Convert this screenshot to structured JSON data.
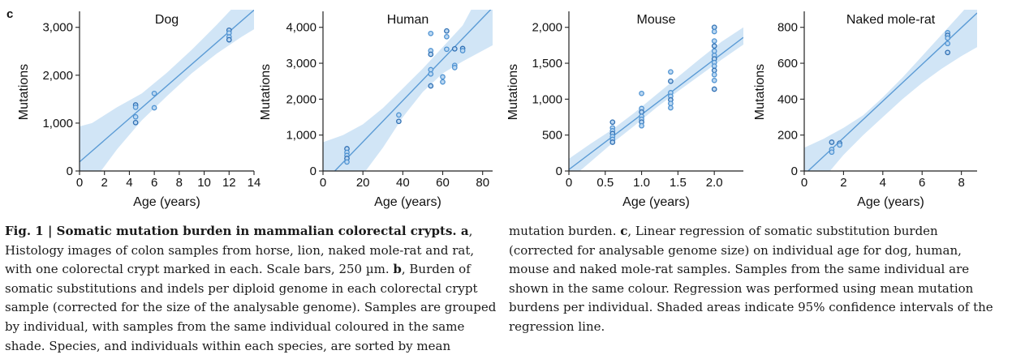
{
  "panel_label": "c",
  "chart_data": [
    {
      "type": "scatter",
      "title": "Dog",
      "xlabel": "Age (years)",
      "ylabel": "Mutations",
      "xlim": [
        0,
        14
      ],
      "ylim": [
        0,
        3300
      ],
      "xticks": [
        0,
        2,
        4,
        6,
        8,
        10,
        12,
        14
      ],
      "yticks": [
        0,
        1000,
        2000,
        3000
      ],
      "ytick_labels": [
        "0",
        "1,000",
        "2,000",
        "3,000"
      ],
      "points": [
        [
          4.5,
          1380
        ],
        [
          4.5,
          1330
        ],
        [
          4.5,
          1130
        ],
        [
          4.5,
          1010
        ],
        [
          6,
          1620
        ],
        [
          6,
          1320
        ],
        [
          12,
          2940
        ],
        [
          12,
          2880
        ],
        [
          12,
          2800
        ],
        [
          12,
          2740
        ]
      ],
      "fit": {
        "x": [
          0,
          14
        ],
        "y": [
          190,
          3360
        ]
      },
      "band": {
        "x": [
          0,
          1,
          3,
          5,
          7,
          9,
          11,
          13,
          14
        ],
        "lower": [
          -550,
          -250,
          450,
          1060,
          1560,
          2040,
          2450,
          2800,
          2960
        ],
        "upper": [
          930,
          1000,
          1330,
          1620,
          2050,
          2530,
          3050,
          3600,
          3850
        ]
      },
      "grid": false
    },
    {
      "type": "scatter",
      "title": "Human",
      "xlabel": "Age (years)",
      "ylabel": "Mutations",
      "xlim": [
        0,
        85
      ],
      "ylim": [
        0,
        4400
      ],
      "xticks": [
        0,
        20,
        40,
        60,
        80
      ],
      "yticks": [
        0,
        1000,
        2000,
        3000,
        4000
      ],
      "ytick_labels": [
        "0",
        "1,000",
        "2,000",
        "3,000",
        "4,000"
      ],
      "points": [
        [
          12,
          620
        ],
        [
          12,
          520
        ],
        [
          12,
          430
        ],
        [
          12,
          350
        ],
        [
          12,
          250
        ],
        [
          38,
          1560
        ],
        [
          38,
          1380
        ],
        [
          54,
          3830
        ],
        [
          54,
          3350
        ],
        [
          54,
          3250
        ],
        [
          54,
          2820
        ],
        [
          54,
          2700
        ],
        [
          54,
          2370
        ],
        [
          60,
          2620
        ],
        [
          60,
          2480
        ],
        [
          62,
          3900
        ],
        [
          62,
          3740
        ],
        [
          62,
          3390
        ],
        [
          66,
          3400
        ],
        [
          66,
          2940
        ],
        [
          66,
          2880
        ],
        [
          70,
          3410
        ],
        [
          70,
          3350
        ]
      ],
      "fit": {
        "x": [
          0,
          85
        ],
        "y": [
          -340,
          4550
        ]
      },
      "band": {
        "x": [
          0,
          10,
          20,
          30,
          40,
          50,
          60,
          70,
          85
        ],
        "lower": [
          -1500,
          -800,
          -100,
          650,
          1500,
          2200,
          2720,
          3050,
          3500
        ],
        "upper": [
          800,
          1000,
          1300,
          1750,
          2300,
          2850,
          3450,
          4050,
          5600
        ]
      },
      "grid": false
    },
    {
      "type": "scatter",
      "title": "Mouse",
      "xlabel": "Age (years)",
      "ylabel": "Mutations",
      "xlim": [
        0,
        2.4
      ],
      "ylim": [
        0,
        2200
      ],
      "xticks": [
        0,
        0.5,
        1.0,
        1.5,
        2.0
      ],
      "xtick_labels": [
        "0",
        "0.5",
        "1.0",
        "1.5",
        "2.0"
      ],
      "yticks": [
        0,
        500,
        1000,
        1500,
        2000
      ],
      "ytick_labels": [
        "0",
        "500",
        "1,000",
        "1,500",
        "2,000"
      ],
      "points": [
        [
          0.6,
          680
        ],
        [
          0.6,
          600
        ],
        [
          0.6,
          560
        ],
        [
          0.6,
          520
        ],
        [
          0.6,
          480
        ],
        [
          0.6,
          440
        ],
        [
          0.6,
          400
        ],
        [
          1.0,
          1080
        ],
        [
          1.0,
          870
        ],
        [
          1.0,
          820
        ],
        [
          1.0,
          760
        ],
        [
          1.0,
          720
        ],
        [
          1.0,
          680
        ],
        [
          1.0,
          630
        ],
        [
          1.4,
          1380
        ],
        [
          1.4,
          1250
        ],
        [
          1.4,
          1090
        ],
        [
          1.4,
          1040
        ],
        [
          1.4,
          990
        ],
        [
          1.4,
          940
        ],
        [
          1.4,
          880
        ],
        [
          2.0,
          2000
        ],
        [
          2.0,
          1940
        ],
        [
          2.0,
          1810
        ],
        [
          2.0,
          1740
        ],
        [
          2.0,
          1670
        ],
        [
          2.0,
          1610
        ],
        [
          2.0,
          1560
        ],
        [
          2.0,
          1510
        ],
        [
          2.0,
          1460
        ],
        [
          2.0,
          1400
        ],
        [
          2.0,
          1340
        ],
        [
          2.0,
          1260
        ],
        [
          2.0,
          1140
        ]
      ],
      "fit": {
        "x": [
          0,
          2.4
        ],
        "y": [
          20,
          1860
        ]
      },
      "band": {
        "x": [
          0,
          0.3,
          0.6,
          0.9,
          1.2,
          1.5,
          1.8,
          2.1,
          2.4
        ],
        "lower": [
          -130,
          130,
          390,
          630,
          880,
          1110,
          1330,
          1550,
          1760
        ],
        "upper": [
          170,
          380,
          580,
          810,
          1060,
          1310,
          1560,
          1800,
          2000
        ]
      },
      "grid": false
    },
    {
      "type": "scatter",
      "title": "Naked mole-rat",
      "xlabel": "Age (years)",
      "ylabel": "Mutations",
      "xlim": [
        0,
        8.8
      ],
      "ylim": [
        0,
        880
      ],
      "xticks": [
        0,
        2,
        4,
        6,
        8
      ],
      "yticks": [
        0,
        200,
        400,
        600,
        800
      ],
      "ytick_labels": [
        "0",
        "200",
        "400",
        "600",
        "800"
      ],
      "points": [
        [
          1.4,
          160
        ],
        [
          1.4,
          120
        ],
        [
          1.4,
          105
        ],
        [
          1.8,
          155
        ],
        [
          1.8,
          145
        ],
        [
          7.3,
          770
        ],
        [
          7.3,
          755
        ],
        [
          7.3,
          740
        ],
        [
          7.3,
          710
        ],
        [
          7.3,
          660
        ]
      ],
      "fit": {
        "x": [
          0,
          8.8
        ],
        "y": [
          -20,
          880
        ]
      },
      "band": {
        "x": [
          0,
          1,
          2,
          3,
          4,
          5,
          6,
          7,
          8,
          8.8
        ],
        "lower": [
          -170,
          -40,
          90,
          200,
          300,
          400,
          490,
          570,
          640,
          690
        ],
        "upper": [
          130,
          180,
          240,
          310,
          410,
          520,
          640,
          760,
          880,
          980
        ]
      },
      "grid": false
    }
  ],
  "caption": {
    "left_lines": [
      [
        {
          "t": "Fig. 1 | Somatic mutation burden in mammalian colorectal crypts. a",
          "b": true
        },
        {
          "t": ",",
          "b": false
        }
      ],
      [
        {
          "t": "Histology images of colon samples from horse, lion, naked mole-rat and rat,",
          "b": false
        }
      ],
      [
        {
          "t": "with one colorectal crypt marked in each. Scale bars, 250 µm. ",
          "b": false
        },
        {
          "t": "b",
          "b": true
        },
        {
          "t": ", Burden of",
          "b": false
        }
      ],
      [
        {
          "t": "somatic substitutions and indels per diploid genome in each colorectal crypt",
          "b": false
        }
      ],
      [
        {
          "t": "sample (corrected for the size of the analysable genome). Samples are grouped",
          "b": false
        }
      ],
      [
        {
          "t": "by individual, with samples from the same individual coloured in the same",
          "b": false
        }
      ],
      [
        {
          "t": "shade. Species, and individuals within each species, are sorted by mean",
          "b": false
        }
      ]
    ],
    "right_lines": [
      [
        {
          "t": "mutation burden. ",
          "b": false
        },
        {
          "t": "c",
          "b": true
        },
        {
          "t": ", Linear regression of somatic substitution burden",
          "b": false
        }
      ],
      [
        {
          "t": "(corrected for analysable genome size) on individual age for dog, human,",
          "b": false
        }
      ],
      [
        {
          "t": "mouse and naked mole-rat samples. Samples from the same individual are",
          "b": false
        }
      ],
      [
        {
          "t": "shown in the same colour. Regression was performed using mean mutation",
          "b": false
        }
      ],
      [
        {
          "t": "burdens per individual. Shaded areas indicate 95% confidence intervals of the",
          "b": false
        }
      ],
      [
        {
          "t": "regression line.",
          "b": false
        }
      ]
    ]
  },
  "colors": {
    "point_stroke": "#4f93d2",
    "point_stroke_dark": "#2f6fb3",
    "point_fill": "#bcd8f2",
    "fit_line": "#5b9bd5",
    "band_fill": "#c9e0f5",
    "axis": "#222222",
    "text": "#111111"
  }
}
